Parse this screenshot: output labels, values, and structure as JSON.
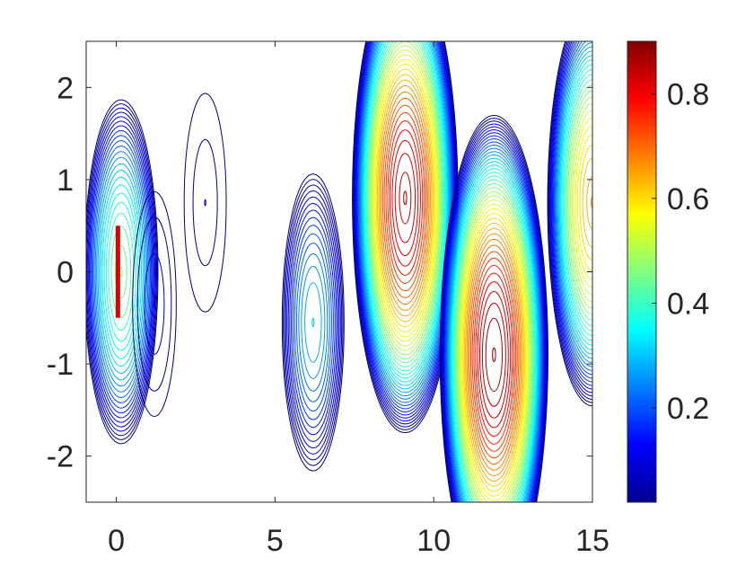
{
  "figure": {
    "title": "",
    "colormap": "jet",
    "background": "#ffffff",
    "axis_color": "#262626"
  },
  "chart_data": {
    "type": "contour",
    "xlim": [
      -0.95,
      15
    ],
    "ylim": [
      -2.5,
      2.5
    ],
    "x_ticks": [
      0,
      5,
      10,
      15
    ],
    "x_tick_labels": [
      "0",
      "5",
      "10",
      "15"
    ],
    "y_ticks": [
      2,
      1,
      0,
      -1,
      -2
    ],
    "y_tick_labels": [
      "2",
      "1",
      "0",
      "-1",
      "-2"
    ],
    "xlabel": "",
    "ylabel": "",
    "grid": false,
    "colorbar": {
      "min": 0.02,
      "max": 0.9,
      "ticks": [
        0.2,
        0.4,
        0.6,
        0.8
      ],
      "tick_labels": [
        "0.2",
        "0.4",
        "0.6",
        "0.8"
      ]
    },
    "levels": {
      "min": 0.02,
      "step": 0.02,
      "max": 0.9
    },
    "vortices": [
      {
        "x": 0.15,
        "y": 0.0,
        "peak": 0.45
      },
      {
        "x": 1.2,
        "y": -0.35,
        "peak": 0.07
      },
      {
        "x": 2.8,
        "y": 0.75,
        "peak": 0.05
      },
      {
        "x": 6.2,
        "y": -0.55,
        "peak": 0.3
      },
      {
        "x": 9.1,
        "y": 0.8,
        "peak": 0.85
      },
      {
        "x": 11.9,
        "y": -0.9,
        "peak": 0.88
      },
      {
        "x": 15.0,
        "y": 0.75,
        "peak": 0.65
      }
    ],
    "body_segment": {
      "x": 0.05,
      "y_min": -0.5,
      "y_max": 0.5
    }
  }
}
